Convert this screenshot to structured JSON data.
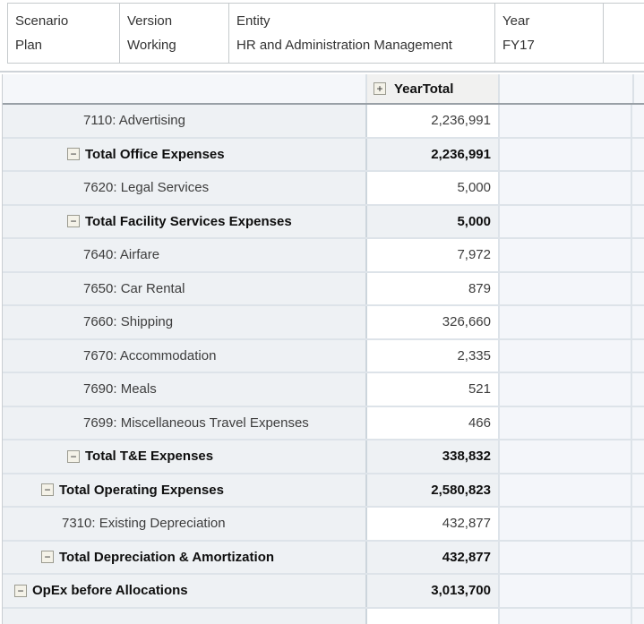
{
  "pov": {
    "cells": [
      {
        "dimension": "Scenario",
        "member": "Plan"
      },
      {
        "dimension": "Version",
        "member": "Working"
      },
      {
        "dimension": "Entity",
        "member": "HR and Administration Management"
      },
      {
        "dimension": "Year",
        "member": "FY17"
      }
    ]
  },
  "grid": {
    "column_header": {
      "label": "YearTotal"
    },
    "icons": {
      "expand_glyph": "+",
      "collapse_glyph": "−"
    },
    "rows": [
      {
        "label": "7110: Advertising",
        "value": "2,236,991",
        "type": "leaf",
        "indent": "leaf3"
      },
      {
        "label": "Total Office Expenses",
        "value": "2,236,991",
        "type": "total",
        "indent": "2"
      },
      {
        "label": "7620: Legal Services",
        "value": "5,000",
        "type": "leaf",
        "indent": "leaf3"
      },
      {
        "label": "Total Facility Services Expenses",
        "value": "5,000",
        "type": "total",
        "indent": "2"
      },
      {
        "label": "7640: Airfare",
        "value": "7,972",
        "type": "leaf",
        "indent": "leaf3"
      },
      {
        "label": "7650: Car Rental",
        "value": "879",
        "type": "leaf",
        "indent": "leaf3"
      },
      {
        "label": "7660: Shipping",
        "value": "326,660",
        "type": "leaf",
        "indent": "leaf3"
      },
      {
        "label": "7670: Accommodation",
        "value": "2,335",
        "type": "leaf",
        "indent": "leaf3"
      },
      {
        "label": "7690: Meals",
        "value": "521",
        "type": "leaf",
        "indent": "leaf3"
      },
      {
        "label": "7699: Miscellaneous Travel Expenses",
        "value": "466",
        "type": "leaf",
        "indent": "leaf3"
      },
      {
        "label": "Total T&E Expenses",
        "value": "338,832",
        "type": "total",
        "indent": "2"
      },
      {
        "label": "Total Operating Expenses",
        "value": "2,580,823",
        "type": "total",
        "indent": "1"
      },
      {
        "label": "7310: Existing Depreciation",
        "value": "432,877",
        "type": "leaf",
        "indent": "leaf2"
      },
      {
        "label": "Total Depreciation & Amortization",
        "value": "432,877",
        "type": "total",
        "indent": "1"
      },
      {
        "label": "OpEx before Allocations",
        "value": "3,013,700",
        "type": "total",
        "indent": "0"
      }
    ]
  },
  "colors": {
    "row_header_bg": "#eef1f4",
    "editable_cell_bg": "#ffffff",
    "total_cell_bg": "#eef1f4",
    "filler_cell_bg": "#f4f6fa",
    "grid_border": "#dde3e9",
    "header_separator": "#99a0a6",
    "pov_border": "#c6cacd",
    "expand_box_bg": "#f4f2e8"
  }
}
